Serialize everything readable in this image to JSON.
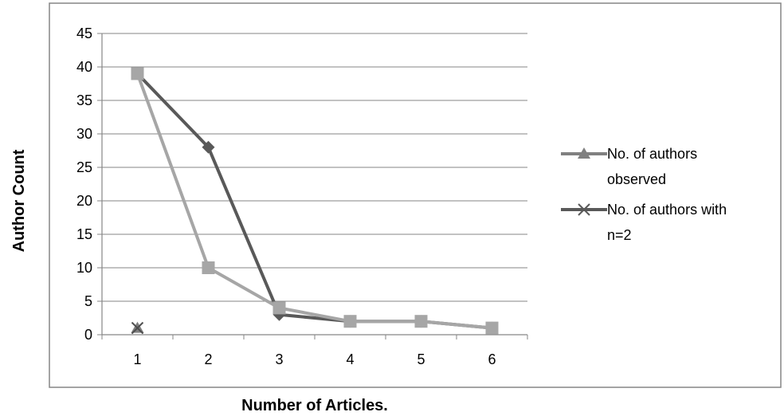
{
  "chart_data": {
    "type": "line",
    "title": "",
    "xlabel": "Number of Articles.",
    "ylabel": "Author  Count",
    "x": [
      1,
      2,
      3,
      4,
      5,
      6
    ],
    "ylim": [
      0,
      45
    ],
    "yticks": [
      0,
      5,
      10,
      15,
      20,
      25,
      30,
      35,
      40,
      45
    ],
    "grid": "horizontal",
    "legend_position": "right",
    "series": [
      {
        "name": "No. of authors with n=2",
        "values": [
          39,
          28,
          3,
          2,
          2,
          1
        ],
        "color": "#595959",
        "marker": "diamond"
      },
      {
        "name": "No. of authors observed",
        "values": [
          39,
          10,
          4,
          2,
          2,
          1
        ],
        "color": "#a6a6a6",
        "marker": "square"
      },
      {
        "name": "",
        "values": [
          1,
          null,
          null,
          null,
          null,
          null
        ],
        "color": "#7f7f7f",
        "marker": "triangle"
      },
      {
        "name": "",
        "values": [
          1,
          null,
          null,
          null,
          null,
          null
        ],
        "color": "#4d4d4d",
        "marker": "x"
      }
    ],
    "legend": [
      {
        "lines": [
          "No. of authors",
          "observed"
        ],
        "color": "#808080",
        "marker": "triangle"
      },
      {
        "lines": [
          "No. of authors with",
          "n=2"
        ],
        "color": "#595959",
        "marker": "x"
      }
    ]
  }
}
